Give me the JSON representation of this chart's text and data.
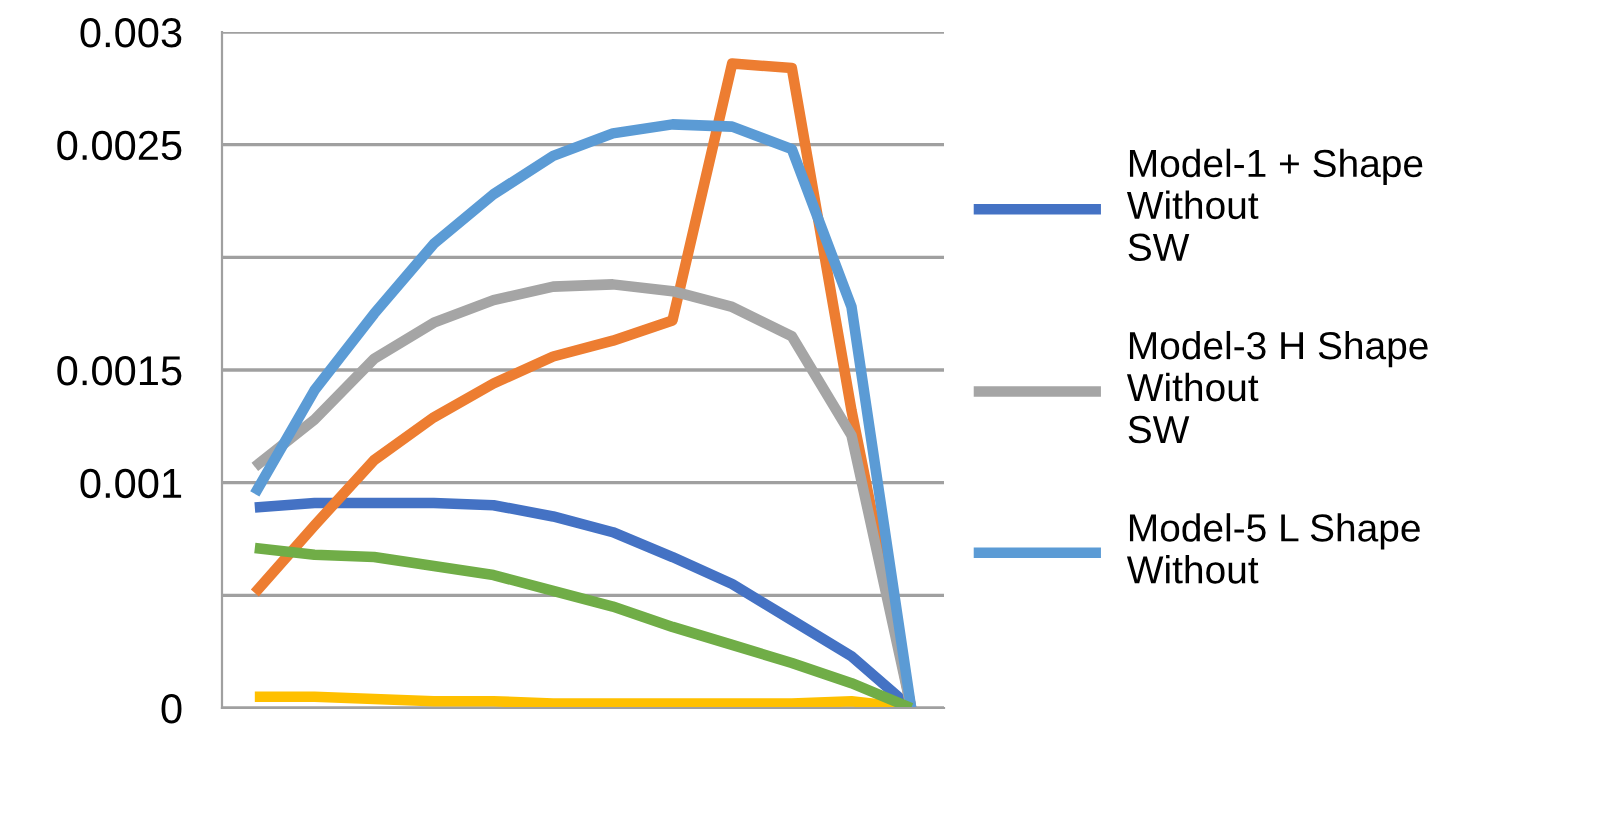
{
  "chart_data": {
    "type": "line",
    "categories": [
      null,
      null,
      null,
      null,
      null,
      null,
      null,
      null,
      null,
      null,
      null,
      null
    ],
    "series": [
      {
        "name": "Model-1 + Shape\nWithout\nSW",
        "color": "#4472c4",
        "values": [
          0.00089,
          0.00091,
          0.00091,
          0.00091,
          0.0009,
          0.00085,
          0.00078,
          0.00067,
          0.00055,
          0.00039,
          0.00023,
          0
        ]
      },
      {
        "color": "#ed7d31",
        "values": [
          0.00051,
          0.00081,
          0.0011,
          0.00129,
          0.00144,
          0.00156,
          0.00163,
          0.00172,
          0.00286,
          0.00284,
          0.00132,
          0
        ]
      },
      {
        "name": "Model-3 H Shape\nWithout\nSW",
        "color": "#a5a5a5",
        "values": [
          0.00107,
          0.00128,
          0.00155,
          0.00171,
          0.00181,
          0.00187,
          0.00188,
          0.00185,
          0.00178,
          0.00165,
          0.00121,
          0
        ]
      },
      {
        "color": "#ffc000",
        "values": [
          5e-05,
          5e-05,
          4e-05,
          3e-05,
          3e-05,
          2e-05,
          2e-05,
          2e-05,
          2e-05,
          2e-05,
          3e-05,
          0
        ]
      },
      {
        "name": "Model-5 L Shape\nWithout",
        "color": "#5b9bd5",
        "values": [
          0.00095,
          0.00141,
          0.00175,
          0.00206,
          0.00228,
          0.00245,
          0.00255,
          0.00259,
          0.00258,
          0.00248,
          0.00178,
          0
        ]
      },
      {
        "color": "#70ad47",
        "values": [
          0.00071,
          0.00068,
          0.00067,
          0.00063,
          0.00059,
          0.00052,
          0.00045,
          0.00036,
          0.00028,
          0.0002,
          0.00011,
          0
        ]
      }
    ],
    "ylim": [
      0,
      0.003
    ],
    "yticks": [
      0,
      {
        "value": 0.0005,
        "label": null
      },
      0.001,
      0.0015,
      {
        "value": 0.002,
        "label": null
      },
      0.0025,
      0.003
    ],
    "grid": "y",
    "legend": "right",
    "marker": "none",
    "line_style": "solid"
  }
}
